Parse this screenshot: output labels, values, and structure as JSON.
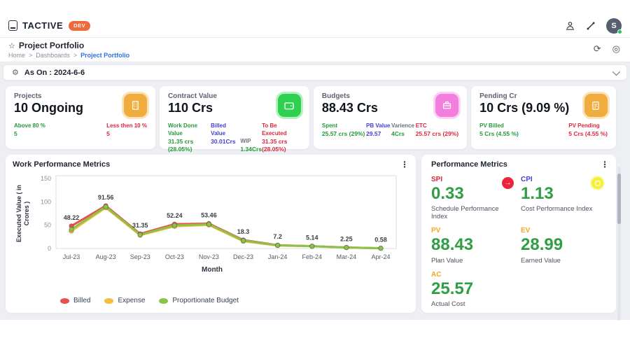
{
  "topbar": {
    "brand": "TACTIVE",
    "env_badge": "DEV",
    "avatar_initial": "S"
  },
  "page_header": {
    "title": "Project Portfolio",
    "breadcrumb": [
      "Home",
      "Dashboards",
      "Project Portfolio"
    ],
    "separator": ">"
  },
  "as_on_bar": {
    "label": "As On : 2024-6-6"
  },
  "cards": [
    {
      "title": "Projects",
      "value": "10 Ongoing",
      "icon": "building-icon",
      "icon_color": "#f0ad3d",
      "stats": [
        {
          "label": "Above 80 %",
          "value": "5"
        },
        {
          "label": "Less then 10 %",
          "value": "5"
        }
      ]
    },
    {
      "title": "Contract Value",
      "value": "110 Crs",
      "icon": "wallet-icon",
      "icon_color": "#2ed14f",
      "stats": [
        {
          "label": "Work Done Value",
          "value": "31.35 crs\n(28.05%)"
        },
        {
          "label": "Billed Value",
          "value": "30.01Crs"
        },
        {
          "label": "WIP",
          "value": "1.34Crs"
        },
        {
          "label": "To Be Executed",
          "value": "31.35 crs\n(28.05%)"
        }
      ]
    },
    {
      "title": "Budgets",
      "value": "88.43 Crs",
      "icon": "briefcase-icon",
      "icon_color": "#f37ede",
      "stats": [
        {
          "label": "Spent",
          "value": "25.57 crs (29%)"
        },
        {
          "label": "PB Value",
          "value": "29.57"
        },
        {
          "label": "Varience",
          "value": "4Crs"
        },
        {
          "label": "ETC",
          "value": "25.57 crs (29%)"
        }
      ]
    },
    {
      "title": "Pending Cr",
      "value": "10 Crs (9.09 %)",
      "icon": "document-icon",
      "icon_color": "#f0ad3d",
      "stats": [
        {
          "label": "PV Billed",
          "value": "5 Crs (4.55 %)"
        },
        {
          "label": "PV Pending",
          "value": "5 Crs (4.55 %)"
        }
      ]
    }
  ],
  "chart_panel": {
    "title": "Work Performance Metrics"
  },
  "chart_data": {
    "type": "line",
    "title": "Work Performance Metrics",
    "x": [
      "Jul-23",
      "Aug-23",
      "Sep-23",
      "Oct-23",
      "Nov-23",
      "Dec-23",
      "Jan-24",
      "Feb-24",
      "Mar-24",
      "Apr-24"
    ],
    "series": [
      {
        "name": "Billed",
        "color": "#e8504f",
        "values": [
          48.22,
          91.56,
          31.35,
          52.24,
          53.46,
          18.3,
          7.2,
          5.14,
          2.25,
          0.58
        ]
      },
      {
        "name": "Expense",
        "color": "#f2c037",
        "values": [
          37.5,
          87.5,
          28.5,
          47.5,
          50.5,
          15.5,
          6.3,
          4.6,
          1.9,
          0.4
        ]
      },
      {
        "name": "Proportionate Budget",
        "color": "#8bc34a",
        "values": [
          41,
          89.5,
          29.5,
          49.5,
          52,
          17,
          6.8,
          5.0,
          2.1,
          0.5
        ]
      }
    ],
    "point_labels": [
      "48.22",
      "91.56",
      "31.35",
      "52.24",
      "53.46",
      "18.3",
      "7.2",
      "5.14",
      "2.25",
      "0.58"
    ],
    "xlabel": "Month",
    "ylabel": "Executed Value ( in Crores )",
    "ylim": [
      0,
      150
    ],
    "yticks": [
      0,
      50,
      100,
      150
    ],
    "grid": false,
    "legend_position": "bottom-left"
  },
  "performance": {
    "title": "Performance Metrics",
    "metrics": [
      {
        "code": "SPI",
        "value": "0.33",
        "desc": "Schedule Performance Index",
        "badge": "red-arrow-badge"
      },
      {
        "code": "CPI",
        "value": "1.13",
        "desc": "Cost Performance Index",
        "badge": "yellow-badge"
      },
      {
        "code": "PV",
        "value": "88.43",
        "desc": "Plan Value"
      },
      {
        "code": "EV",
        "value": "28.99",
        "desc": "Earned Value"
      },
      {
        "code": "AC",
        "value": "25.57",
        "desc": "Actual Cost"
      }
    ]
  },
  "colors": {
    "accent_orange": "#ed6a3a",
    "green_text": "#259a3c",
    "red_text": "#e0263e",
    "indigo_text": "#4341d6",
    "metric_green": "#2f9e44",
    "metric_orange": "#f5a623",
    "breadcrumb_blue": "#2f6fe4",
    "billed_line": "#e8504f",
    "expense_line": "#f2c037",
    "budget_line": "#8bc34a"
  }
}
